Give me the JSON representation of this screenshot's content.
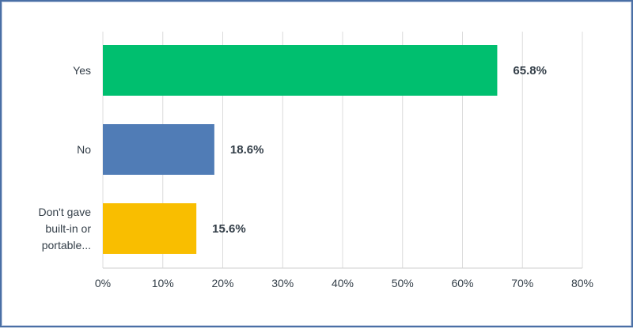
{
  "chart_data": {
    "type": "bar",
    "orientation": "horizontal",
    "categories": [
      [
        "Yes"
      ],
      [
        "No"
      ],
      [
        "Don't gave",
        "built-in or",
        "portable..."
      ]
    ],
    "values": [
      65.8,
      18.6,
      15.6
    ],
    "value_labels": [
      "65.8%",
      "18.6%",
      "15.6%"
    ],
    "bar_colors": [
      "#00bf6f",
      "#507cb6",
      "#f9be00"
    ],
    "xlim": [
      0,
      80
    ],
    "xticks": [
      0,
      10,
      20,
      30,
      40,
      50,
      60,
      70,
      80
    ],
    "xtick_labels": [
      "0%",
      "10%",
      "20%",
      "30%",
      "40%",
      "50%",
      "60%",
      "70%",
      "80%"
    ],
    "grid": "vertical",
    "title": "",
    "xlabel": "",
    "ylabel": ""
  }
}
